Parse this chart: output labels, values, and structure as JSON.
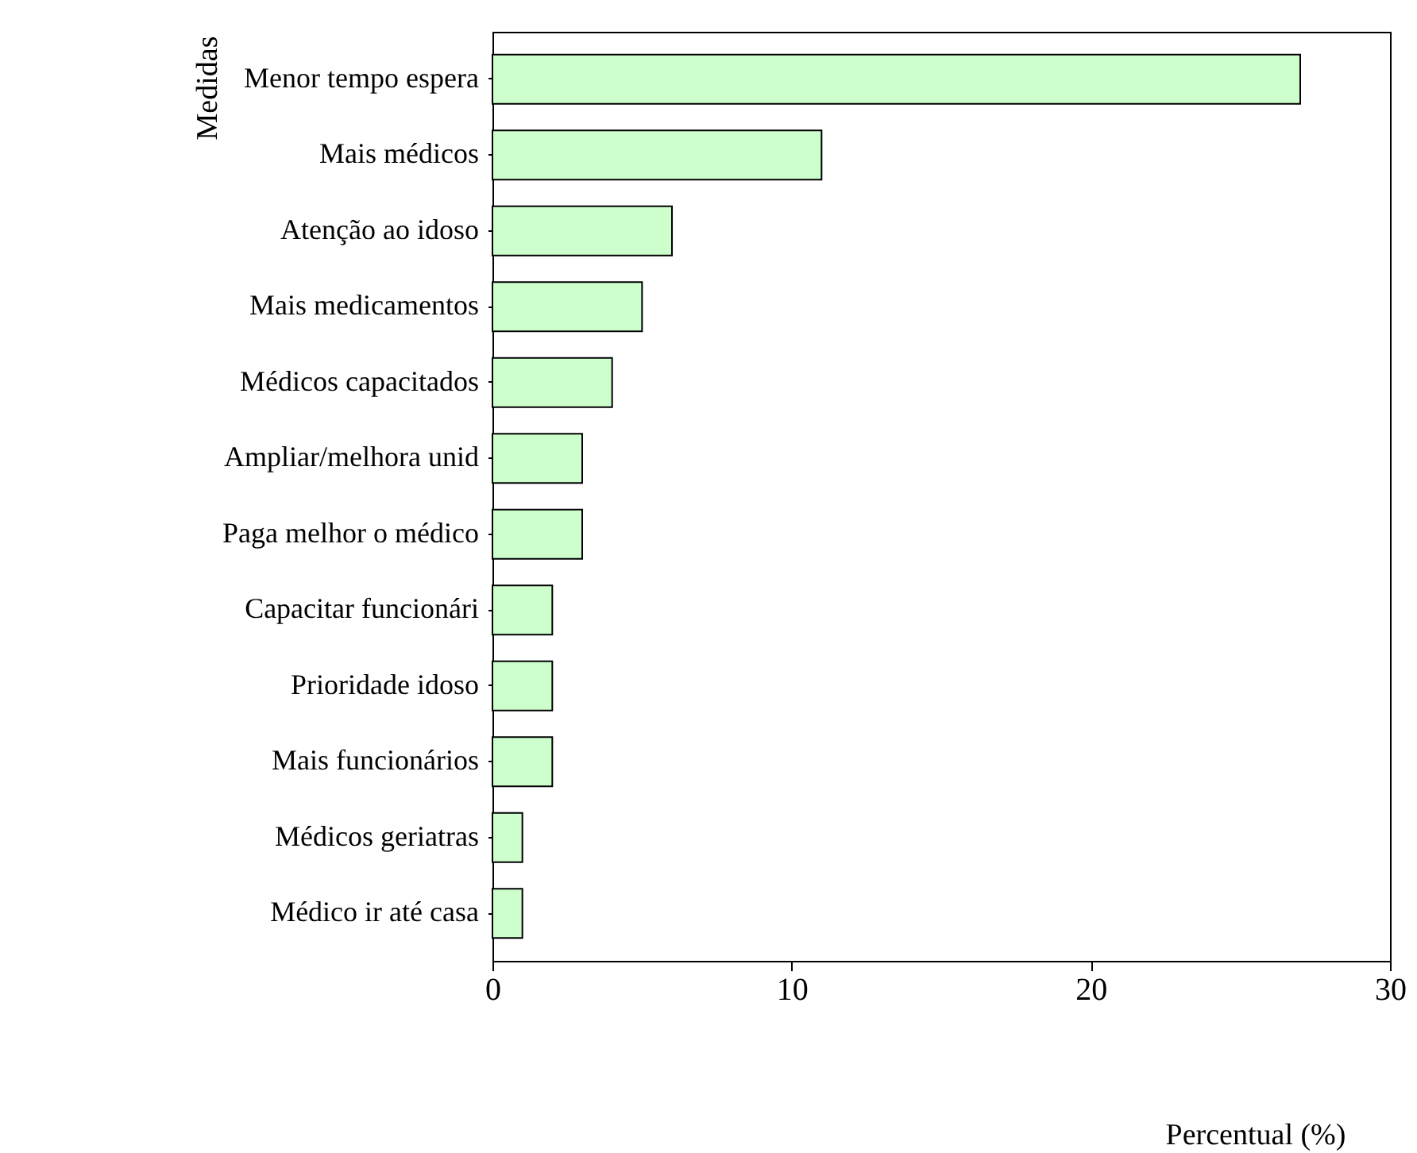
{
  "chart_data": {
    "type": "bar",
    "orientation": "horizontal",
    "xlabel": "Percentual (%)",
    "ylabel": "Medidas",
    "categories": [
      "Menor tempo espera",
      "Mais médicos",
      "Atenção ao idoso",
      "Mais medicamentos",
      "Médicos capacitados",
      "Ampliar/melhora unid",
      "Paga melhor o médico",
      "Capacitar funcionári",
      "Prioridade idoso",
      "Mais funcionários",
      "Médicos geriatras",
      "Médico ir até casa"
    ],
    "values": [
      27,
      11,
      6,
      5,
      4,
      3,
      3,
      2,
      2,
      2,
      1,
      1
    ],
    "color": "#ccffcc",
    "xlim": [
      0,
      30
    ],
    "xticks": [
      0,
      10,
      20,
      30
    ],
    "grid": false
  }
}
